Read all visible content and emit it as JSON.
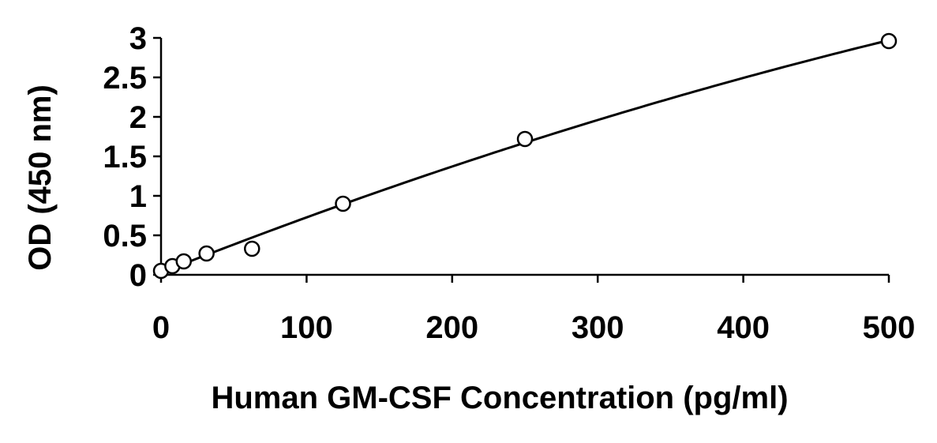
{
  "chart_data": {
    "type": "scatter",
    "title": "",
    "xlabel": "Human GM-CSF Concentration (pg/ml)",
    "ylabel": "OD (450 nm)",
    "xlim": [
      0,
      500
    ],
    "ylim": [
      0,
      3
    ],
    "x_ticks": [
      "0",
      "100",
      "200",
      "300",
      "400",
      "500"
    ],
    "y_ticks": [
      "0",
      "0.5",
      "1",
      "1.5",
      "2",
      "2.5",
      "3"
    ],
    "grid": false,
    "legend": "none",
    "series": [
      {
        "x": [
          0,
          7.8,
          15.6,
          31.25,
          62.5,
          125,
          250,
          500
        ],
        "y": [
          0.05,
          0.11,
          0.17,
          0.27,
          0.33,
          0.9,
          1.72,
          2.96
        ],
        "marker": "open-circle",
        "color": "#000000"
      }
    ],
    "fit_curve": {
      "type": "polynomial",
      "color": "#000000"
    }
  }
}
